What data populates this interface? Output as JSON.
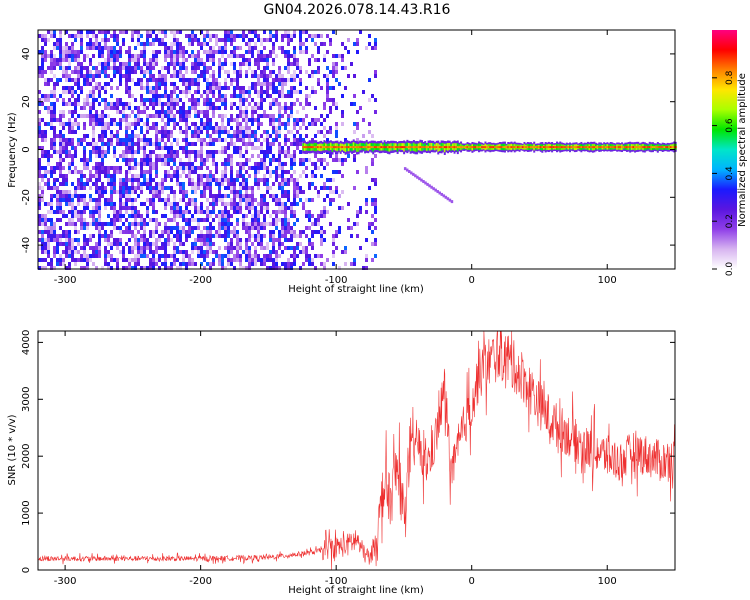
{
  "page": {
    "title": "GN04.2026.078.14.43.R16"
  },
  "chart_data": [
    {
      "type": "heatmap",
      "xlabel": "Height of straight line (km)",
      "ylabel": "Frequency (Hz)",
      "xlim": [
        -320,
        150
      ],
      "ylim": [
        -50,
        50
      ],
      "x_ticks": [
        -300,
        -200,
        -100,
        0,
        100
      ],
      "y_ticks": [
        -40,
        -20,
        0,
        20,
        40
      ],
      "colorbar": {
        "label": "Normalized spectral amplitude",
        "range": [
          0,
          1
        ],
        "ticks": [
          0.0,
          0.2,
          0.4,
          0.6,
          0.8
        ],
        "colors": [
          "#ffffff",
          "#d7b4f0",
          "#8f3ee8",
          "#5a16e0",
          "#1a1aff",
          "#00b4ff",
          "#00e6c8",
          "#00e600",
          "#aaff00",
          "#ffe600",
          "#ff8000",
          "#ff0000",
          "#ff0080"
        ]
      },
      "features": [
        {
          "name": "broadband noise",
          "x_range": [
            -320,
            -70
          ],
          "freq_range": [
            -50,
            50
          ],
          "level": 0.25
        },
        {
          "name": "carrier line",
          "x_range": [
            -125,
            150
          ],
          "freq": 1,
          "level": 0.9
        },
        {
          "name": "drifting faint line",
          "x_range": [
            -50,
            -15
          ],
          "freq_range": [
            -8,
            -22
          ],
          "level": 0.15
        }
      ]
    },
    {
      "type": "line",
      "xlabel": "Height of straight line (km)",
      "ylabel": "SNR (10 * v/v)",
      "xlim": [
        -320,
        150
      ],
      "ylim": [
        0,
        4200
      ],
      "x_ticks": [
        -300,
        -200,
        -100,
        0,
        100
      ],
      "y_ticks": [
        0,
        1000,
        2000,
        3000,
        4000
      ],
      "color": "#ee3030",
      "series": [
        {
          "x": [
            -320,
            -300,
            -250,
            -200,
            -150,
            -120,
            -100,
            -90,
            -85,
            -80,
            -75,
            -70,
            -65,
            -60,
            -55,
            -50,
            -45,
            -40,
            -35,
            -30,
            -25,
            -20,
            -15,
            -10,
            -5,
            0,
            5,
            10,
            15,
            20,
            25,
            30,
            35,
            40,
            45,
            50,
            60,
            70,
            80,
            90,
            100,
            110,
            120,
            130,
            140,
            150
          ],
          "y": [
            200,
            200,
            200,
            200,
            220,
            300,
            400,
            450,
            550,
            300,
            200,
            600,
            1500,
            1200,
            1800,
            1000,
            2000,
            2300,
            1800,
            2000,
            2500,
            3200,
            1700,
            2100,
            2600,
            2900,
            3400,
            3600,
            3700,
            3800,
            3750,
            3600,
            3500,
            3300,
            3100,
            2900,
            2600,
            2400,
            2200,
            2100,
            2000,
            1900,
            2100,
            2000,
            1900,
            2000
          ]
        }
      ]
    }
  ]
}
